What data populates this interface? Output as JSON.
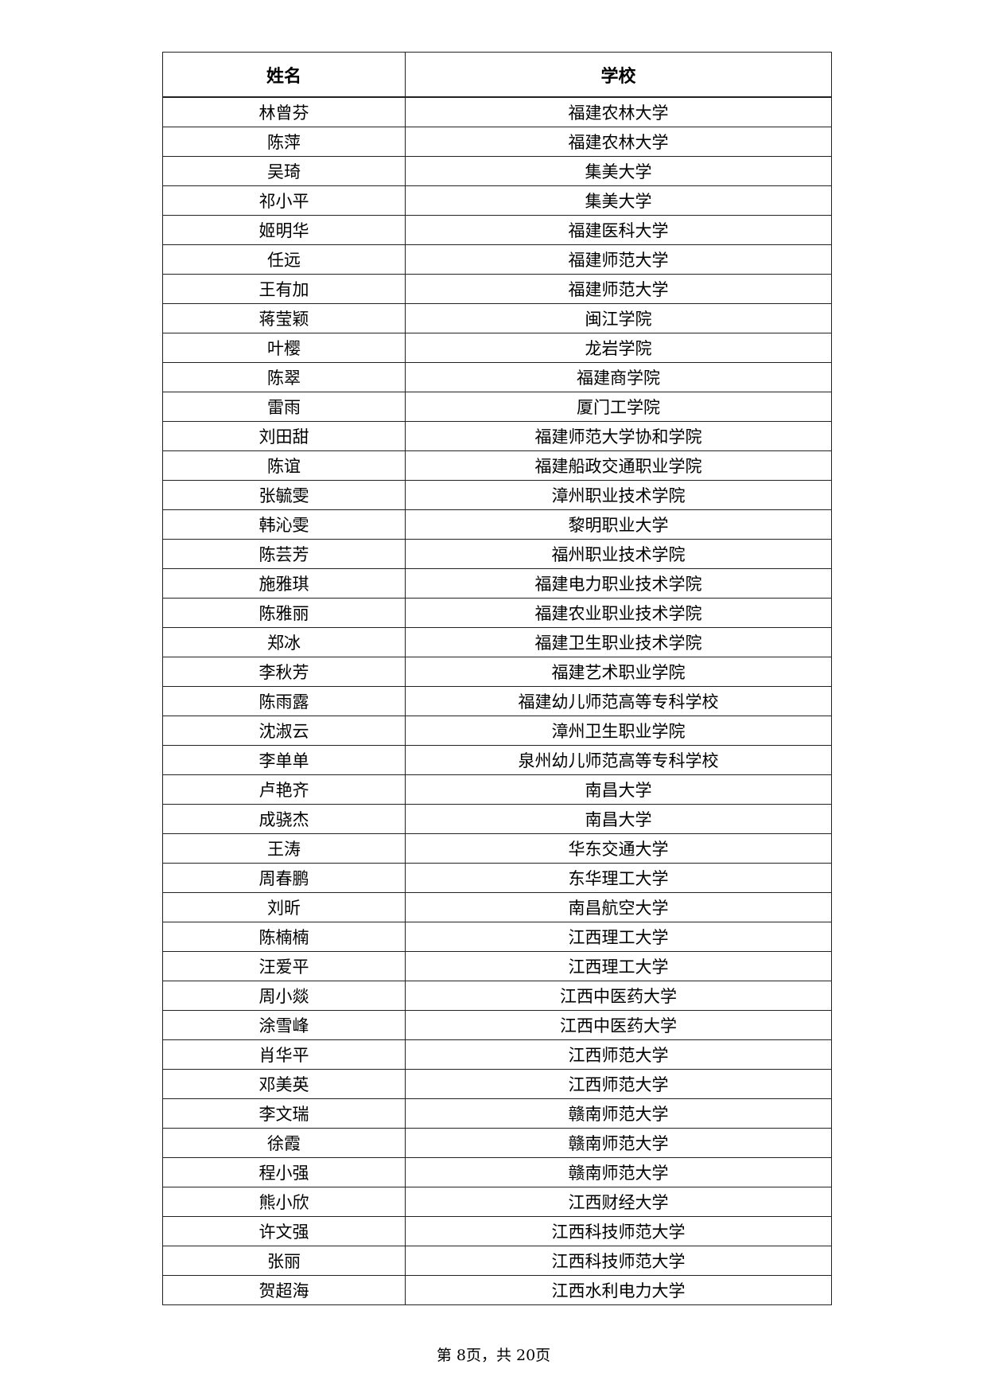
{
  "table": {
    "headers": [
      "姓名",
      "学校"
    ],
    "rows": [
      [
        "林曾芬",
        "福建农林大学"
      ],
      [
        "陈萍",
        "福建农林大学"
      ],
      [
        "吴琦",
        "集美大学"
      ],
      [
        "祁小平",
        "集美大学"
      ],
      [
        "姬明华",
        "福建医科大学"
      ],
      [
        "任远",
        "福建师范大学"
      ],
      [
        "王有加",
        "福建师范大学"
      ],
      [
        "蒋莹颖",
        "闽江学院"
      ],
      [
        "叶樱",
        "龙岩学院"
      ],
      [
        "陈翠",
        "福建商学院"
      ],
      [
        "雷雨",
        "厦门工学院"
      ],
      [
        "刘田甜",
        "福建师范大学协和学院"
      ],
      [
        "陈谊",
        "福建船政交通职业学院"
      ],
      [
        "张毓雯",
        "漳州职业技术学院"
      ],
      [
        "韩沁雯",
        "黎明职业大学"
      ],
      [
        "陈芸芳",
        "福州职业技术学院"
      ],
      [
        "施雅琪",
        "福建电力职业技术学院"
      ],
      [
        "陈雅丽",
        "福建农业职业技术学院"
      ],
      [
        "郑冰",
        "福建卫生职业技术学院"
      ],
      [
        "李秋芳",
        "福建艺术职业学院"
      ],
      [
        "陈雨露",
        "福建幼儿师范高等专科学校"
      ],
      [
        "沈淑云",
        "漳州卫生职业学院"
      ],
      [
        "李单单",
        "泉州幼儿师范高等专科学校"
      ],
      [
        "卢艳齐",
        "南昌大学"
      ],
      [
        "成骁杰",
        "南昌大学"
      ],
      [
        "王涛",
        "华东交通大学"
      ],
      [
        "周春鹏",
        "东华理工大学"
      ],
      [
        "刘昕",
        "南昌航空大学"
      ],
      [
        "陈楠楠",
        "江西理工大学"
      ],
      [
        "汪爱平",
        "江西理工大学"
      ],
      [
        "周小燚",
        "江西中医药大学"
      ],
      [
        "涂雪峰",
        "江西中医药大学"
      ],
      [
        "肖华平",
        "江西师范大学"
      ],
      [
        "邓美英",
        "江西师范大学"
      ],
      [
        "李文瑞",
        "赣南师范大学"
      ],
      [
        "徐霞",
        "赣南师范大学"
      ],
      [
        "程小强",
        "赣南师范大学"
      ],
      [
        "熊小欣",
        "江西财经大学"
      ],
      [
        "许文强",
        "江西科技师范大学"
      ],
      [
        "张丽",
        "江西科技师范大学"
      ],
      [
        "贺超海",
        "江西水利电力大学"
      ]
    ]
  },
  "footer": "第 8页，共 20页"
}
